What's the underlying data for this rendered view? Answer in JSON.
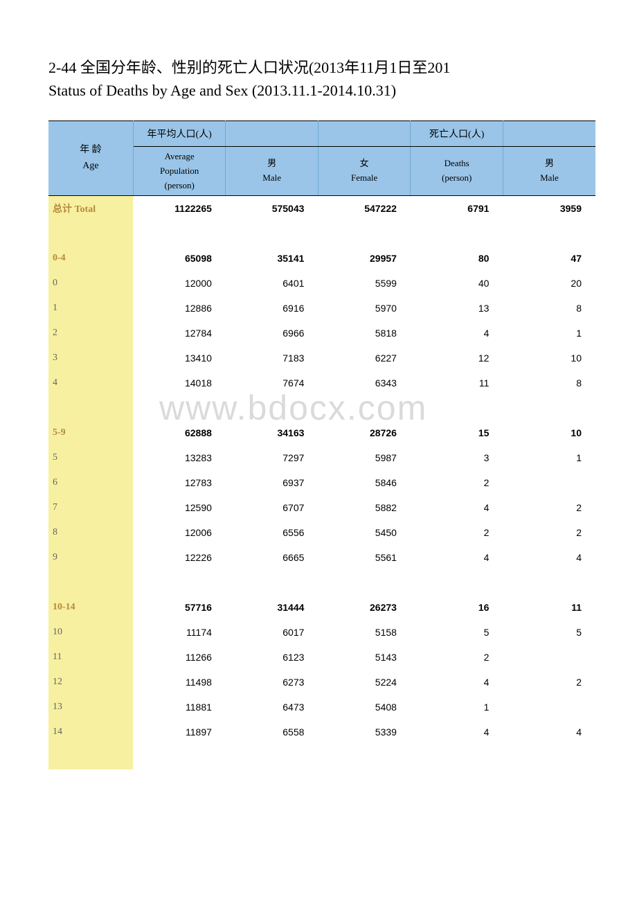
{
  "title": {
    "line1_cn": "2-44  全国分年龄、性别的死亡人口状况(2013年11月1日至201",
    "line2_en": "Status of Deaths by Age and Sex (2013.11.1-2014.10.31)"
  },
  "watermark": "www.bdocx.com",
  "columns": {
    "age": {
      "cn": "年 龄",
      "en": "Age"
    },
    "avgpop": {
      "cn": "年平均人口(人)",
      "en1": "Average",
      "en2": "Population",
      "en3": "(person)"
    },
    "male": {
      "cn": "男",
      "en": "Male"
    },
    "female": {
      "cn": "女",
      "en": "Female"
    },
    "deaths": {
      "cn": "死亡人口(人)",
      "en1": "Deaths",
      "en2": "(person)"
    },
    "dmale": {
      "cn": "男",
      "en": "Male"
    }
  },
  "colors": {
    "header_bg": "#9ac5e8",
    "rowlabel_bg": "#f7f0a0",
    "bold_label": "#b58a3c",
    "text": "#000000",
    "muted": "#666666"
  },
  "rows": [
    {
      "type": "bold",
      "label": "总计 Total",
      "c": [
        "1122265",
        "575043",
        "547222",
        "6791",
        "3959"
      ]
    },
    {
      "type": "spacer"
    },
    {
      "type": "bold",
      "label": "0-4",
      "c": [
        "65098",
        "35141",
        "29957",
        "80",
        "47"
      ]
    },
    {
      "type": "n",
      "label": "0",
      "c": [
        "12000",
        "6401",
        "5599",
        "40",
        "20"
      ]
    },
    {
      "type": "n",
      "label": "1",
      "c": [
        "12886",
        "6916",
        "5970",
        "13",
        "8"
      ]
    },
    {
      "type": "n",
      "label": "2",
      "c": [
        "12784",
        "6966",
        "5818",
        "4",
        "1"
      ]
    },
    {
      "type": "n",
      "label": "3",
      "c": [
        "13410",
        "7183",
        "6227",
        "12",
        "10"
      ]
    },
    {
      "type": "n",
      "label": "4",
      "c": [
        "14018",
        "7674",
        "6343",
        "11",
        "8"
      ]
    },
    {
      "type": "spacer"
    },
    {
      "type": "bold",
      "label": "5-9",
      "c": [
        "62888",
        "34163",
        "28726",
        "15",
        "10"
      ]
    },
    {
      "type": "n",
      "label": "5",
      "c": [
        "13283",
        "7297",
        "5987",
        "3",
        "1"
      ]
    },
    {
      "type": "n",
      "label": "6",
      "c": [
        "12783",
        "6937",
        "5846",
        "2",
        ""
      ]
    },
    {
      "type": "n",
      "label": "7",
      "c": [
        "12590",
        "6707",
        "5882",
        "4",
        "2"
      ]
    },
    {
      "type": "n",
      "label": "8",
      "c": [
        "12006",
        "6556",
        "5450",
        "2",
        "2"
      ]
    },
    {
      "type": "n",
      "label": "9",
      "c": [
        "12226",
        "6665",
        "5561",
        "4",
        "4"
      ]
    },
    {
      "type": "spacer"
    },
    {
      "type": "bold",
      "label": "10-14",
      "c": [
        "57716",
        "31444",
        "26273",
        "16",
        "11"
      ]
    },
    {
      "type": "n",
      "label": "10",
      "c": [
        "11174",
        "6017",
        "5158",
        "5",
        "5"
      ]
    },
    {
      "type": "n",
      "label": "11",
      "c": [
        "11266",
        "6123",
        "5143",
        "2",
        ""
      ]
    },
    {
      "type": "n",
      "label": "12",
      "c": [
        "11498",
        "6273",
        "5224",
        "4",
        "2"
      ]
    },
    {
      "type": "n",
      "label": "13",
      "c": [
        "11881",
        "6473",
        "5408",
        "1",
        ""
      ]
    },
    {
      "type": "n",
      "label": "14",
      "c": [
        "11897",
        "6558",
        "5339",
        "4",
        "4"
      ]
    },
    {
      "type": "spacer"
    }
  ]
}
